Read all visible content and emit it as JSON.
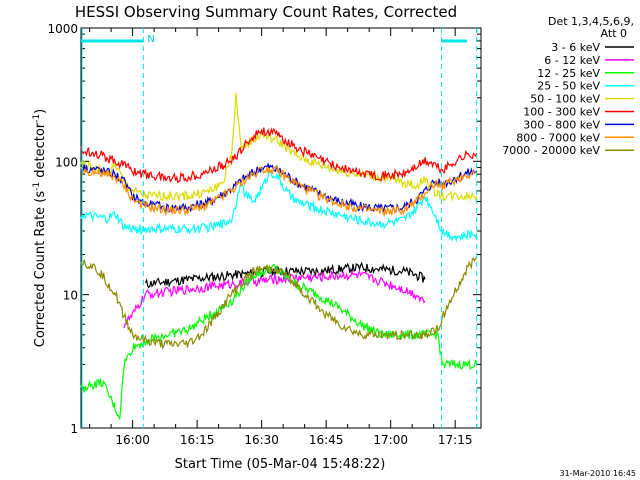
{
  "chart_data": {
    "type": "line",
    "title": "HESSI Observing Summary Count Rates, Corrected",
    "xlabel": "Start Time (05-Mar-04 15:48:22)",
    "ylabel_main": "Corrected Count Rate (s",
    "ylabel_sup1": "-1",
    "ylabel_mid": " detector",
    "ylabel_sup2": "-1",
    "ylabel_end": ")",
    "yscale": "log",
    "ylim": [
      1,
      1000
    ],
    "xlim_min": [
      0,
      93
    ],
    "x_ticks": [
      {
        "min": 12,
        "label": "16:00"
      },
      {
        "min": 27,
        "label": "16:15"
      },
      {
        "min": 42,
        "label": "16:30"
      },
      {
        "min": 57,
        "label": "16:45"
      },
      {
        "min": 72,
        "label": "17:00"
      },
      {
        "min": 87,
        "label": "17:15"
      }
    ],
    "y_ticks": [
      {
        "value": 1,
        "label": "1"
      },
      {
        "value": 10,
        "label": "10"
      },
      {
        "value": 100,
        "label": "100"
      },
      {
        "value": 1000,
        "label": "1000"
      }
    ],
    "legend_header": [
      "Det 1,3,4,5,6,9,",
      "Att 0"
    ],
    "legend_position": "right",
    "footer_date": "31-Mar-2010 16:45",
    "night_flag": "N",
    "boundaries_min": [
      14.5,
      83.8,
      92.0
    ],
    "series": [
      {
        "name": "3 - 6 keV",
        "color": "#000000",
        "x": [
          15,
          20,
          25,
          30,
          35,
          40,
          45,
          50,
          55,
          60,
          65,
          70,
          75,
          78,
          80
        ],
        "y": [
          12,
          12.5,
          13,
          13.5,
          14,
          14.5,
          15,
          15,
          15,
          15.5,
          16,
          15.5,
          15,
          14,
          13
        ]
      },
      {
        "name": "6 - 12 keV",
        "color": "#ff00ff",
        "x": [
          10,
          12,
          15,
          20,
          25,
          30,
          35,
          40,
          45,
          50,
          55,
          60,
          65,
          70,
          75,
          78,
          80
        ],
        "y": [
          6,
          7,
          10,
          10.5,
          11,
          11.5,
          12,
          12.5,
          13,
          13.5,
          13.5,
          14,
          14,
          12.5,
          11,
          10,
          9
        ]
      },
      {
        "name": "12 - 25 keV",
        "color": "#00ff00",
        "x": [
          0,
          5,
          9,
          10,
          12,
          15,
          20,
          25,
          30,
          35,
          40,
          45,
          50,
          55,
          60,
          65,
          70,
          75,
          80,
          83,
          84,
          86,
          88,
          90,
          92
        ],
        "y": [
          2,
          2.2,
          1.2,
          3,
          4,
          4.5,
          5,
          5.5,
          7,
          9,
          14,
          16,
          12,
          10,
          8,
          6,
          5,
          5,
          5,
          5,
          3,
          3,
          3,
          3,
          3
        ]
      },
      {
        "name": "25 - 50 keV",
        "color": "#00ffff",
        "x": [
          0,
          3,
          6,
          8,
          10,
          12,
          15,
          20,
          25,
          30,
          33,
          35,
          36,
          37,
          38,
          40,
          42,
          44,
          46,
          48,
          50,
          55,
          60,
          65,
          70,
          75,
          78,
          80,
          82,
          84,
          86,
          88,
          90,
          92
        ],
        "y": [
          40,
          38,
          37,
          40,
          32,
          31,
          31,
          31,
          31,
          32,
          34,
          37,
          48,
          70,
          58,
          50,
          62,
          85,
          74,
          58,
          50,
          44,
          40,
          36,
          34,
          36,
          44,
          55,
          42,
          30,
          28,
          27,
          28,
          29
        ]
      },
      {
        "name": "50 - 100 keV",
        "color": "#dcdc00",
        "x": [
          0,
          3,
          6,
          8,
          10,
          12,
          15,
          20,
          25,
          30,
          33,
          35,
          36,
          37,
          38,
          40,
          42,
          44,
          46,
          48,
          50,
          55,
          60,
          65,
          70,
          75,
          78,
          80,
          82,
          84,
          86,
          88,
          90,
          92
        ],
        "y": [
          95,
          90,
          80,
          95,
          70,
          60,
          55,
          55,
          55,
          60,
          70,
          110,
          320,
          140,
          130,
          145,
          160,
          150,
          140,
          125,
          110,
          95,
          85,
          80,
          75,
          70,
          65,
          75,
          60,
          55,
          55,
          55,
          55,
          55
        ]
      },
      {
        "name": "100 - 300 keV",
        "color": "#ff0000",
        "x": [
          0,
          3,
          5,
          8,
          10,
          12,
          15,
          20,
          25,
          30,
          35,
          38,
          40,
          42,
          44,
          46,
          48,
          50,
          55,
          60,
          65,
          70,
          75,
          80,
          82,
          84,
          86,
          88,
          90,
          92
        ],
        "y": [
          120,
          118,
          110,
          100,
          95,
          85,
          80,
          75,
          76,
          85,
          100,
          130,
          155,
          170,
          165,
          155,
          140,
          128,
          105,
          90,
          82,
          78,
          80,
          100,
          95,
          85,
          95,
          105,
          112,
          115
        ]
      },
      {
        "name": "300 - 800 keV",
        "color": "#0000cc",
        "x": [
          0,
          3,
          5,
          8,
          10,
          12,
          15,
          20,
          25,
          30,
          35,
          38,
          40,
          42,
          44,
          46,
          48,
          50,
          55,
          60,
          65,
          70,
          75,
          78,
          80,
          82,
          84,
          86,
          88,
          90,
          92
        ],
        "y": [
          90,
          88,
          85,
          80,
          70,
          55,
          48,
          45,
          45,
          50,
          62,
          75,
          82,
          90,
          90,
          85,
          78,
          70,
          58,
          50,
          46,
          44,
          45,
          52,
          60,
          70,
          68,
          72,
          78,
          82,
          85
        ]
      },
      {
        "name": "800 - 7000 keV",
        "color": "#ff8c00",
        "x": [
          0,
          3,
          5,
          8,
          10,
          12,
          15,
          20,
          25,
          30,
          35,
          38,
          40,
          42,
          44,
          46,
          48,
          50,
          55,
          60,
          65,
          70,
          75,
          78,
          80,
          82,
          84,
          86,
          88,
          90,
          92
        ],
        "y": [
          85,
          83,
          80,
          76,
          66,
          52,
          46,
          43,
          43,
          48,
          60,
          72,
          80,
          88,
          88,
          83,
          75,
          68,
          56,
          48,
          44,
          42,
          43,
          50,
          58,
          68,
          66,
          70,
          75,
          80,
          83
        ]
      },
      {
        "name": "7000 - 20000 keV",
        "color": "#8b8b00",
        "x": [
          0,
          3,
          5,
          8,
          10,
          12,
          15,
          20,
          25,
          28,
          30,
          35,
          40,
          45,
          50,
          55,
          60,
          65,
          70,
          75,
          80,
          83,
          85,
          88,
          90,
          92
        ],
        "y": [
          18,
          16,
          14,
          10,
          7,
          5,
          4.5,
          4.2,
          4.3,
          5,
          6,
          10,
          15,
          16,
          12,
          8,
          6,
          5,
          5,
          5,
          5,
          5.5,
          8,
          12,
          16,
          19
        ]
      }
    ]
  }
}
